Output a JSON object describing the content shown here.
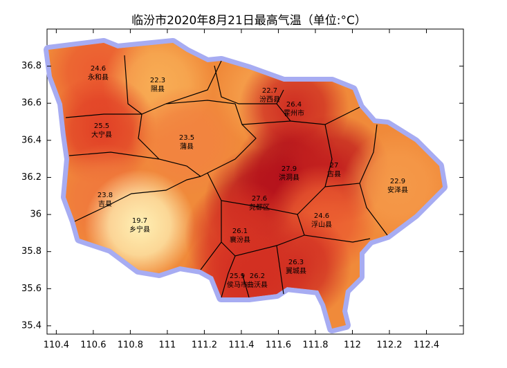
{
  "chart_data": {
    "type": "map",
    "title": "临汾市2020年8月21日最高气温（单位:°C）",
    "xlim": [
      110.35,
      112.6
    ],
    "ylim": [
      35.355,
      37.0
    ],
    "xticks": [
      110.4,
      110.6,
      110.8,
      111,
      111.2,
      111.4,
      111.6,
      111.8,
      112,
      112.2,
      112.4
    ],
    "yticks": [
      35.4,
      35.6,
      35.8,
      36,
      36.2,
      36.4,
      36.6,
      36.8
    ],
    "regions": [
      {
        "name": "永和县",
        "value": 24.6
      },
      {
        "name": "隰县",
        "value": 22.3
      },
      {
        "name": "汾西县",
        "value": 22.7
      },
      {
        "name": "霍州市",
        "value": 26.4
      },
      {
        "name": "大宁县",
        "value": 25.5
      },
      {
        "name": "蒲县",
        "value": 23.5
      },
      {
        "name": "洪洞县",
        "value": 27.9
      },
      {
        "name": "古县",
        "value": 27
      },
      {
        "name": "安泽县",
        "value": 22.9
      },
      {
        "name": "吉县",
        "value": 23.8
      },
      {
        "name": "尧都区",
        "value": 27.6
      },
      {
        "name": "乡宁县",
        "value": 19.7
      },
      {
        "name": "浮山县",
        "value": 24.6
      },
      {
        "name": "襄汾县",
        "value": 26.1
      },
      {
        "name": "翼城县",
        "value": 26.3
      },
      {
        "name": "侯马市",
        "value": 25.9
      },
      {
        "name": "曲沃县",
        "value": 26.2
      }
    ]
  }
}
